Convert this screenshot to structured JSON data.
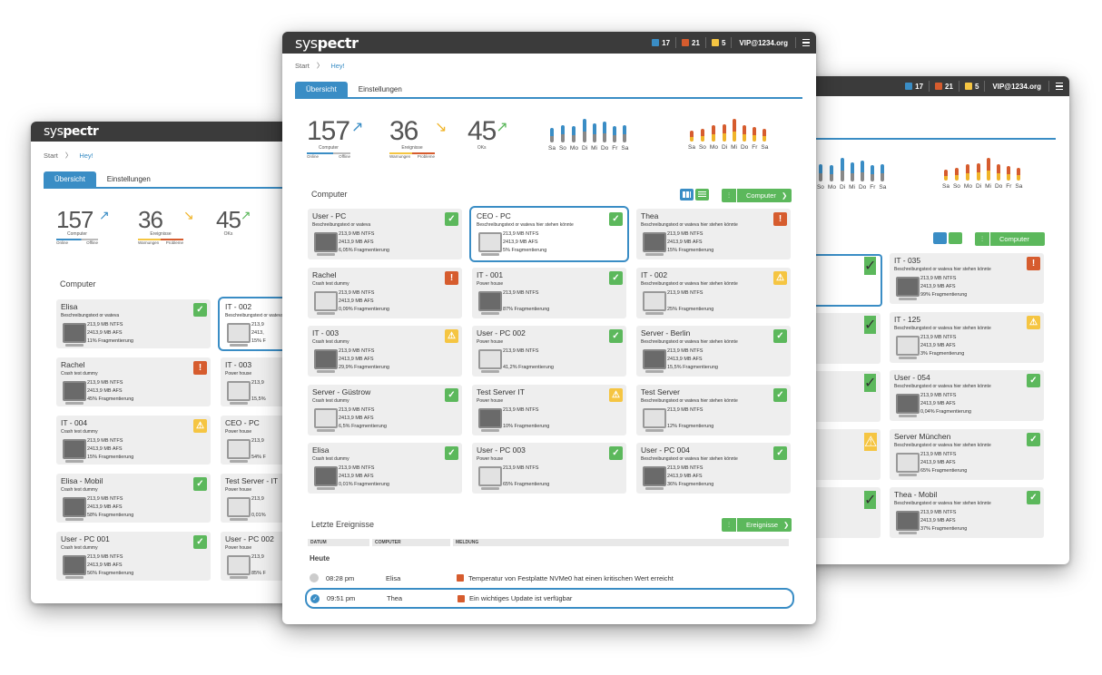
{
  "brand": {
    "pre": "sys",
    "post": "pectr"
  },
  "header": {
    "downloads": "17",
    "alerts": "21",
    "warnings": "5",
    "email": "VIP@1234.org"
  },
  "breadcrumb": {
    "start": "Start",
    "current": "Hey!"
  },
  "tabs": [
    "Übersicht",
    "Einstellungen"
  ],
  "kpis": {
    "computer": {
      "value": "157",
      "label": "Computer",
      "left": "Online",
      "right": "Offline"
    },
    "events": {
      "value": "36",
      "label": "Ereignisse",
      "left": "Warnungen",
      "right": "Probleme"
    },
    "ok": {
      "value": "45",
      "label": "OKs"
    }
  },
  "days": [
    "Sa",
    "So",
    "Mo",
    "Di",
    "Mi",
    "Do",
    "Fr",
    "Sa"
  ],
  "chart_data": [
    {
      "type": "bar",
      "categories": [
        "Sa",
        "So",
        "Mo",
        "Di",
        "Mi",
        "Do",
        "Fr",
        "Sa"
      ],
      "series": [
        {
          "values": [
            18,
            22,
            20,
            30,
            24,
            26,
            20,
            22
          ]
        }
      ],
      "colors": [
        "#888888",
        "#3a8dc5"
      ]
    },
    {
      "type": "bar",
      "categories": [
        "Sa",
        "So",
        "Mo",
        "Di",
        "Mi",
        "Do",
        "Fr",
        "Sa"
      ],
      "series": [
        {
          "values": [
            14,
            16,
            20,
            22,
            28,
            20,
            18,
            16
          ]
        }
      ],
      "colors": [
        "#f0b429",
        "#d65c2e"
      ]
    }
  ],
  "computer_section": {
    "title": "Computer",
    "button": "Computer"
  },
  "events_section": {
    "title": "Letzte Ereignisse",
    "button": "Ereignisse",
    "headers": [
      "DATUM",
      "COMPUTER",
      "MELDUNG"
    ],
    "group": "Heute",
    "rows": [
      {
        "time": "08:28 pm",
        "computer": "Elisa",
        "message": "Temperatur von Festplatte NVMe0 hat einen kritischen Wert erreicht"
      },
      {
        "time": "09:51 pm",
        "computer": "Thea",
        "message": "Ein wichtiges Update ist verfügbar"
      }
    ]
  },
  "main_cards": [
    {
      "name": "User - PC",
      "desc": "Beschreibungstext or wateva",
      "l1": "213,9 MB NTFS",
      "l2": "2413,9 MB AFS",
      "l3": "6,05% Fragmentierung",
      "status": "ok"
    },
    {
      "name": "CEO - PC",
      "desc": "Beschreibungstext or wateva hier stehen könnte",
      "l1": "213,9 MB NTFS",
      "l2": "2413,9 MB AFS",
      "l3": "5% Fragmentierung",
      "status": "ok",
      "selected": true
    },
    {
      "name": "Thea",
      "desc": "Beschreibungstext or wateva hier stehen könnte",
      "l1": "213,9 MB NTFS",
      "l2": "2413,9 MB AFS",
      "l3": "15% Fragmentierung",
      "status": "err"
    },
    {
      "name": "Rachel",
      "desc": "Crash test dummy",
      "l1": "213,9 MB NTFS",
      "l2": "2413,9 MB AFS",
      "l3": "0,09% Fragmentierung",
      "status": "err"
    },
    {
      "name": "IT - 001",
      "desc": "Power house",
      "l1": "213,9 MB NTFS",
      "l2": "",
      "l3": "87% Fragmentierung",
      "status": "ok"
    },
    {
      "name": "IT - 002",
      "desc": "Beschreibungstext or wateva hier stehen könnte",
      "l1": "213,9 MB NTFS",
      "l2": "",
      "l3": "25% Fragmentierung",
      "status": "warn"
    },
    {
      "name": "IT - 003",
      "desc": "Crash test dummy",
      "l1": "213,9 MB NTFS",
      "l2": "2413,9 MB AFS",
      "l3": "29,9% Fragmentierung",
      "status": "warn"
    },
    {
      "name": "User - PC 002",
      "desc": "Power house",
      "l1": "213,9 MB NTFS",
      "l2": "",
      "l3": "41,2% Fragmentierung",
      "status": "ok"
    },
    {
      "name": "Server - Berlin",
      "desc": "Beschreibungstext or wateva hier stehen könnte",
      "l1": "213,9 MB NTFS",
      "l2": "2413,9 MB AFS",
      "l3": "15,5% Fragmentierung",
      "status": "ok"
    },
    {
      "name": "Server - Güstrow",
      "desc": "Crash test dummy",
      "l1": "213,9 MB NTFS",
      "l2": "2413,9 MB AFS",
      "l3": "6,5% Fragmentierung",
      "status": "ok"
    },
    {
      "name": "Test Server IT",
      "desc": "Power house",
      "l1": "213,9 MB NTFS",
      "l2": "",
      "l3": "10% Fragmentierung",
      "status": "warn"
    },
    {
      "name": "Test Server",
      "desc": "Beschreibungstext or wateva hier stehen könnte",
      "l1": "213,9 MB NTFS",
      "l2": "",
      "l3": "12% Fragmentierung",
      "status": "ok"
    },
    {
      "name": "Elisa",
      "desc": "Crash test dummy",
      "l1": "213,9 MB NTFS",
      "l2": "2413,9 MB AFS",
      "l3": "0,01% Fragmentierung",
      "status": "ok"
    },
    {
      "name": "User - PC 003",
      "desc": "Power house",
      "l1": "213,9 MB NTFS",
      "l2": "",
      "l3": "65% Fragmentierung",
      "status": "ok"
    },
    {
      "name": "User - PC 004",
      "desc": "Beschreibungstext or wateva hier stehen könnte",
      "l1": "213,9 MB NTFS",
      "l2": "2413,9 MB AFS",
      "l3": "36% Fragmentierung",
      "status": "ok"
    }
  ],
  "left_cards": [
    {
      "name": "Elisa",
      "desc": "Beschreibungstext or wateva",
      "l1": "213,9 MB NTFS",
      "l2": "2413,9 MB AFS",
      "l3": "11% Fragmentierung",
      "status": "ok"
    },
    {
      "name": "IT - 002",
      "desc": "Beschreibungstext or wateva",
      "l1": "213,9",
      "l2": "2413,",
      "l3": "15% F",
      "status": "",
      "selected": true
    },
    {
      "name": "Rachel",
      "desc": "Crash test dummy",
      "l1": "213,9 MB NTFS",
      "l2": "2413,9 MB AFS",
      "l3": "45% Fragmentierung",
      "status": "err"
    },
    {
      "name": "IT - 003",
      "desc": "Power house",
      "l1": "213,9",
      "l2": "",
      "l3": "15,5%",
      "status": ""
    },
    {
      "name": "IT - 004",
      "desc": "Crash test dummy",
      "l1": "213,9 MB NTFS",
      "l2": "2413,9 MB AFS",
      "l3": "15% Fragmentierung",
      "status": "warn"
    },
    {
      "name": "CEO - PC",
      "desc": "Power house",
      "l1": "213,9",
      "l2": "",
      "l3": "54% F",
      "status": ""
    },
    {
      "name": "Elisa - Mobil",
      "desc": "Crash test dummy",
      "l1": "213,9 MB NTFS",
      "l2": "2413,9 MB AFS",
      "l3": "58% Fragmentierung",
      "status": "ok"
    },
    {
      "name": "Test Server - IT",
      "desc": "Power house",
      "l1": "213,9",
      "l2": "",
      "l3": "0,01%",
      "status": ""
    },
    {
      "name": "User - PC 001",
      "desc": "Crash test dummy",
      "l1": "213,9 MB NTFS",
      "l2": "2413,9 MB AFS",
      "l3": "56% Fragmentierung",
      "status": "ok"
    },
    {
      "name": "User - PC 002",
      "desc": "Power house",
      "l1": "213,9",
      "l2": "",
      "l3": "85% F",
      "status": ""
    }
  ],
  "right_cards": [
    {
      "name": "IT - 035",
      "desc": "Beschreibungstext or wateva hier stehen könnte",
      "l1": "213,9 MB NTFS",
      "l2": "2413,9 MB AFS",
      "l3": "99% Fragmentierung",
      "status": "err"
    },
    {
      "name": "IT - 125",
      "desc": "Beschreibungstext or wateva hier stehen könnte",
      "l1": "213,9 MB NTFS",
      "l2": "2413,9 MB AFS",
      "l3": "3% Fragmentierung",
      "status": "warn"
    },
    {
      "name": "User - 054",
      "desc": "Beschreibungstext or wateva hier stehen könnte",
      "l1": "213,9 MB NTFS",
      "l2": "2413,9 MB AFS",
      "l3": "0,04% Fragmentierung",
      "status": "ok"
    },
    {
      "name": "Server München",
      "desc": "Beschreibungstext or wateva hier stehen könnte",
      "l1": "213,9 MB NTFS",
      "l2": "2413,9 MB AFS",
      "l3": "65% Fragmentierung",
      "status": "ok"
    },
    {
      "name": "Thea - Mobil",
      "desc": "Beschreibungstext or wateva hier stehen könnte",
      "l1": "213,9 MB NTFS",
      "l2": "2413,9 MB AFS",
      "l3": "37% Fragmentierung",
      "status": "ok"
    }
  ],
  "colors": {
    "accent": "#3a8dc5",
    "ok": "#5cb85c",
    "error": "#d65c2e",
    "warning": "#f5c542",
    "titlebar": "#3b3b3b"
  }
}
